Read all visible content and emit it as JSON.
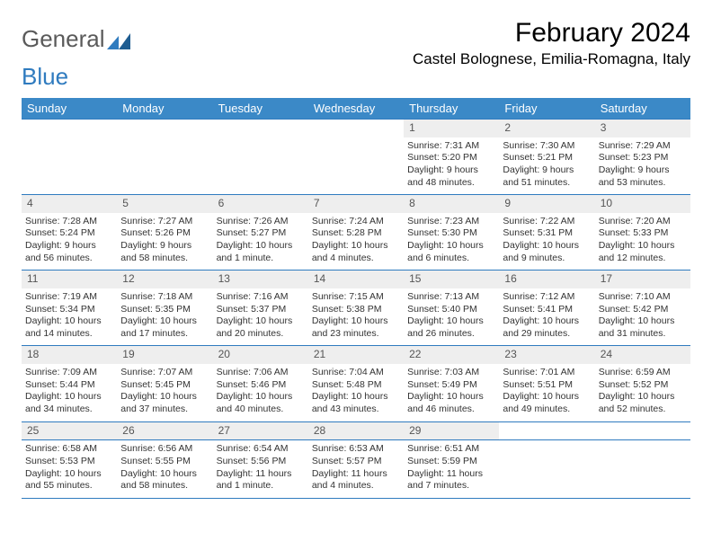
{
  "brand": {
    "part1": "General",
    "part2": "Blue"
  },
  "title": "February 2024",
  "location": "Castel Bolognese, Emilia-Romagna, Italy",
  "colors": {
    "header_bg": "#3b89c7",
    "header_text": "#ffffff",
    "daynum_bg": "#eeeeee",
    "row_border": "#2f7bbf",
    "logo_gray": "#5a5a5a",
    "logo_blue": "#2f7bbf"
  },
  "day_headers": [
    "Sunday",
    "Monday",
    "Tuesday",
    "Wednesday",
    "Thursday",
    "Friday",
    "Saturday"
  ],
  "weeks": [
    [
      null,
      null,
      null,
      null,
      {
        "n": "1",
        "sr": "Sunrise: 7:31 AM",
        "ss": "Sunset: 5:20 PM",
        "d1": "Daylight: 9 hours",
        "d2": "and 48 minutes."
      },
      {
        "n": "2",
        "sr": "Sunrise: 7:30 AM",
        "ss": "Sunset: 5:21 PM",
        "d1": "Daylight: 9 hours",
        "d2": "and 51 minutes."
      },
      {
        "n": "3",
        "sr": "Sunrise: 7:29 AM",
        "ss": "Sunset: 5:23 PM",
        "d1": "Daylight: 9 hours",
        "d2": "and 53 minutes."
      }
    ],
    [
      {
        "n": "4",
        "sr": "Sunrise: 7:28 AM",
        "ss": "Sunset: 5:24 PM",
        "d1": "Daylight: 9 hours",
        "d2": "and 56 minutes."
      },
      {
        "n": "5",
        "sr": "Sunrise: 7:27 AM",
        "ss": "Sunset: 5:26 PM",
        "d1": "Daylight: 9 hours",
        "d2": "and 58 minutes."
      },
      {
        "n": "6",
        "sr": "Sunrise: 7:26 AM",
        "ss": "Sunset: 5:27 PM",
        "d1": "Daylight: 10 hours",
        "d2": "and 1 minute."
      },
      {
        "n": "7",
        "sr": "Sunrise: 7:24 AM",
        "ss": "Sunset: 5:28 PM",
        "d1": "Daylight: 10 hours",
        "d2": "and 4 minutes."
      },
      {
        "n": "8",
        "sr": "Sunrise: 7:23 AM",
        "ss": "Sunset: 5:30 PM",
        "d1": "Daylight: 10 hours",
        "d2": "and 6 minutes."
      },
      {
        "n": "9",
        "sr": "Sunrise: 7:22 AM",
        "ss": "Sunset: 5:31 PM",
        "d1": "Daylight: 10 hours",
        "d2": "and 9 minutes."
      },
      {
        "n": "10",
        "sr": "Sunrise: 7:20 AM",
        "ss": "Sunset: 5:33 PM",
        "d1": "Daylight: 10 hours",
        "d2": "and 12 minutes."
      }
    ],
    [
      {
        "n": "11",
        "sr": "Sunrise: 7:19 AM",
        "ss": "Sunset: 5:34 PM",
        "d1": "Daylight: 10 hours",
        "d2": "and 14 minutes."
      },
      {
        "n": "12",
        "sr": "Sunrise: 7:18 AM",
        "ss": "Sunset: 5:35 PM",
        "d1": "Daylight: 10 hours",
        "d2": "and 17 minutes."
      },
      {
        "n": "13",
        "sr": "Sunrise: 7:16 AM",
        "ss": "Sunset: 5:37 PM",
        "d1": "Daylight: 10 hours",
        "d2": "and 20 minutes."
      },
      {
        "n": "14",
        "sr": "Sunrise: 7:15 AM",
        "ss": "Sunset: 5:38 PM",
        "d1": "Daylight: 10 hours",
        "d2": "and 23 minutes."
      },
      {
        "n": "15",
        "sr": "Sunrise: 7:13 AM",
        "ss": "Sunset: 5:40 PM",
        "d1": "Daylight: 10 hours",
        "d2": "and 26 minutes."
      },
      {
        "n": "16",
        "sr": "Sunrise: 7:12 AM",
        "ss": "Sunset: 5:41 PM",
        "d1": "Daylight: 10 hours",
        "d2": "and 29 minutes."
      },
      {
        "n": "17",
        "sr": "Sunrise: 7:10 AM",
        "ss": "Sunset: 5:42 PM",
        "d1": "Daylight: 10 hours",
        "d2": "and 31 minutes."
      }
    ],
    [
      {
        "n": "18",
        "sr": "Sunrise: 7:09 AM",
        "ss": "Sunset: 5:44 PM",
        "d1": "Daylight: 10 hours",
        "d2": "and 34 minutes."
      },
      {
        "n": "19",
        "sr": "Sunrise: 7:07 AM",
        "ss": "Sunset: 5:45 PM",
        "d1": "Daylight: 10 hours",
        "d2": "and 37 minutes."
      },
      {
        "n": "20",
        "sr": "Sunrise: 7:06 AM",
        "ss": "Sunset: 5:46 PM",
        "d1": "Daylight: 10 hours",
        "d2": "and 40 minutes."
      },
      {
        "n": "21",
        "sr": "Sunrise: 7:04 AM",
        "ss": "Sunset: 5:48 PM",
        "d1": "Daylight: 10 hours",
        "d2": "and 43 minutes."
      },
      {
        "n": "22",
        "sr": "Sunrise: 7:03 AM",
        "ss": "Sunset: 5:49 PM",
        "d1": "Daylight: 10 hours",
        "d2": "and 46 minutes."
      },
      {
        "n": "23",
        "sr": "Sunrise: 7:01 AM",
        "ss": "Sunset: 5:51 PM",
        "d1": "Daylight: 10 hours",
        "d2": "and 49 minutes."
      },
      {
        "n": "24",
        "sr": "Sunrise: 6:59 AM",
        "ss": "Sunset: 5:52 PM",
        "d1": "Daylight: 10 hours",
        "d2": "and 52 minutes."
      }
    ],
    [
      {
        "n": "25",
        "sr": "Sunrise: 6:58 AM",
        "ss": "Sunset: 5:53 PM",
        "d1": "Daylight: 10 hours",
        "d2": "and 55 minutes."
      },
      {
        "n": "26",
        "sr": "Sunrise: 6:56 AM",
        "ss": "Sunset: 5:55 PM",
        "d1": "Daylight: 10 hours",
        "d2": "and 58 minutes."
      },
      {
        "n": "27",
        "sr": "Sunrise: 6:54 AM",
        "ss": "Sunset: 5:56 PM",
        "d1": "Daylight: 11 hours",
        "d2": "and 1 minute."
      },
      {
        "n": "28",
        "sr": "Sunrise: 6:53 AM",
        "ss": "Sunset: 5:57 PM",
        "d1": "Daylight: 11 hours",
        "d2": "and 4 minutes."
      },
      {
        "n": "29",
        "sr": "Sunrise: 6:51 AM",
        "ss": "Sunset: 5:59 PM",
        "d1": "Daylight: 11 hours",
        "d2": "and 7 minutes."
      },
      null,
      null
    ]
  ]
}
